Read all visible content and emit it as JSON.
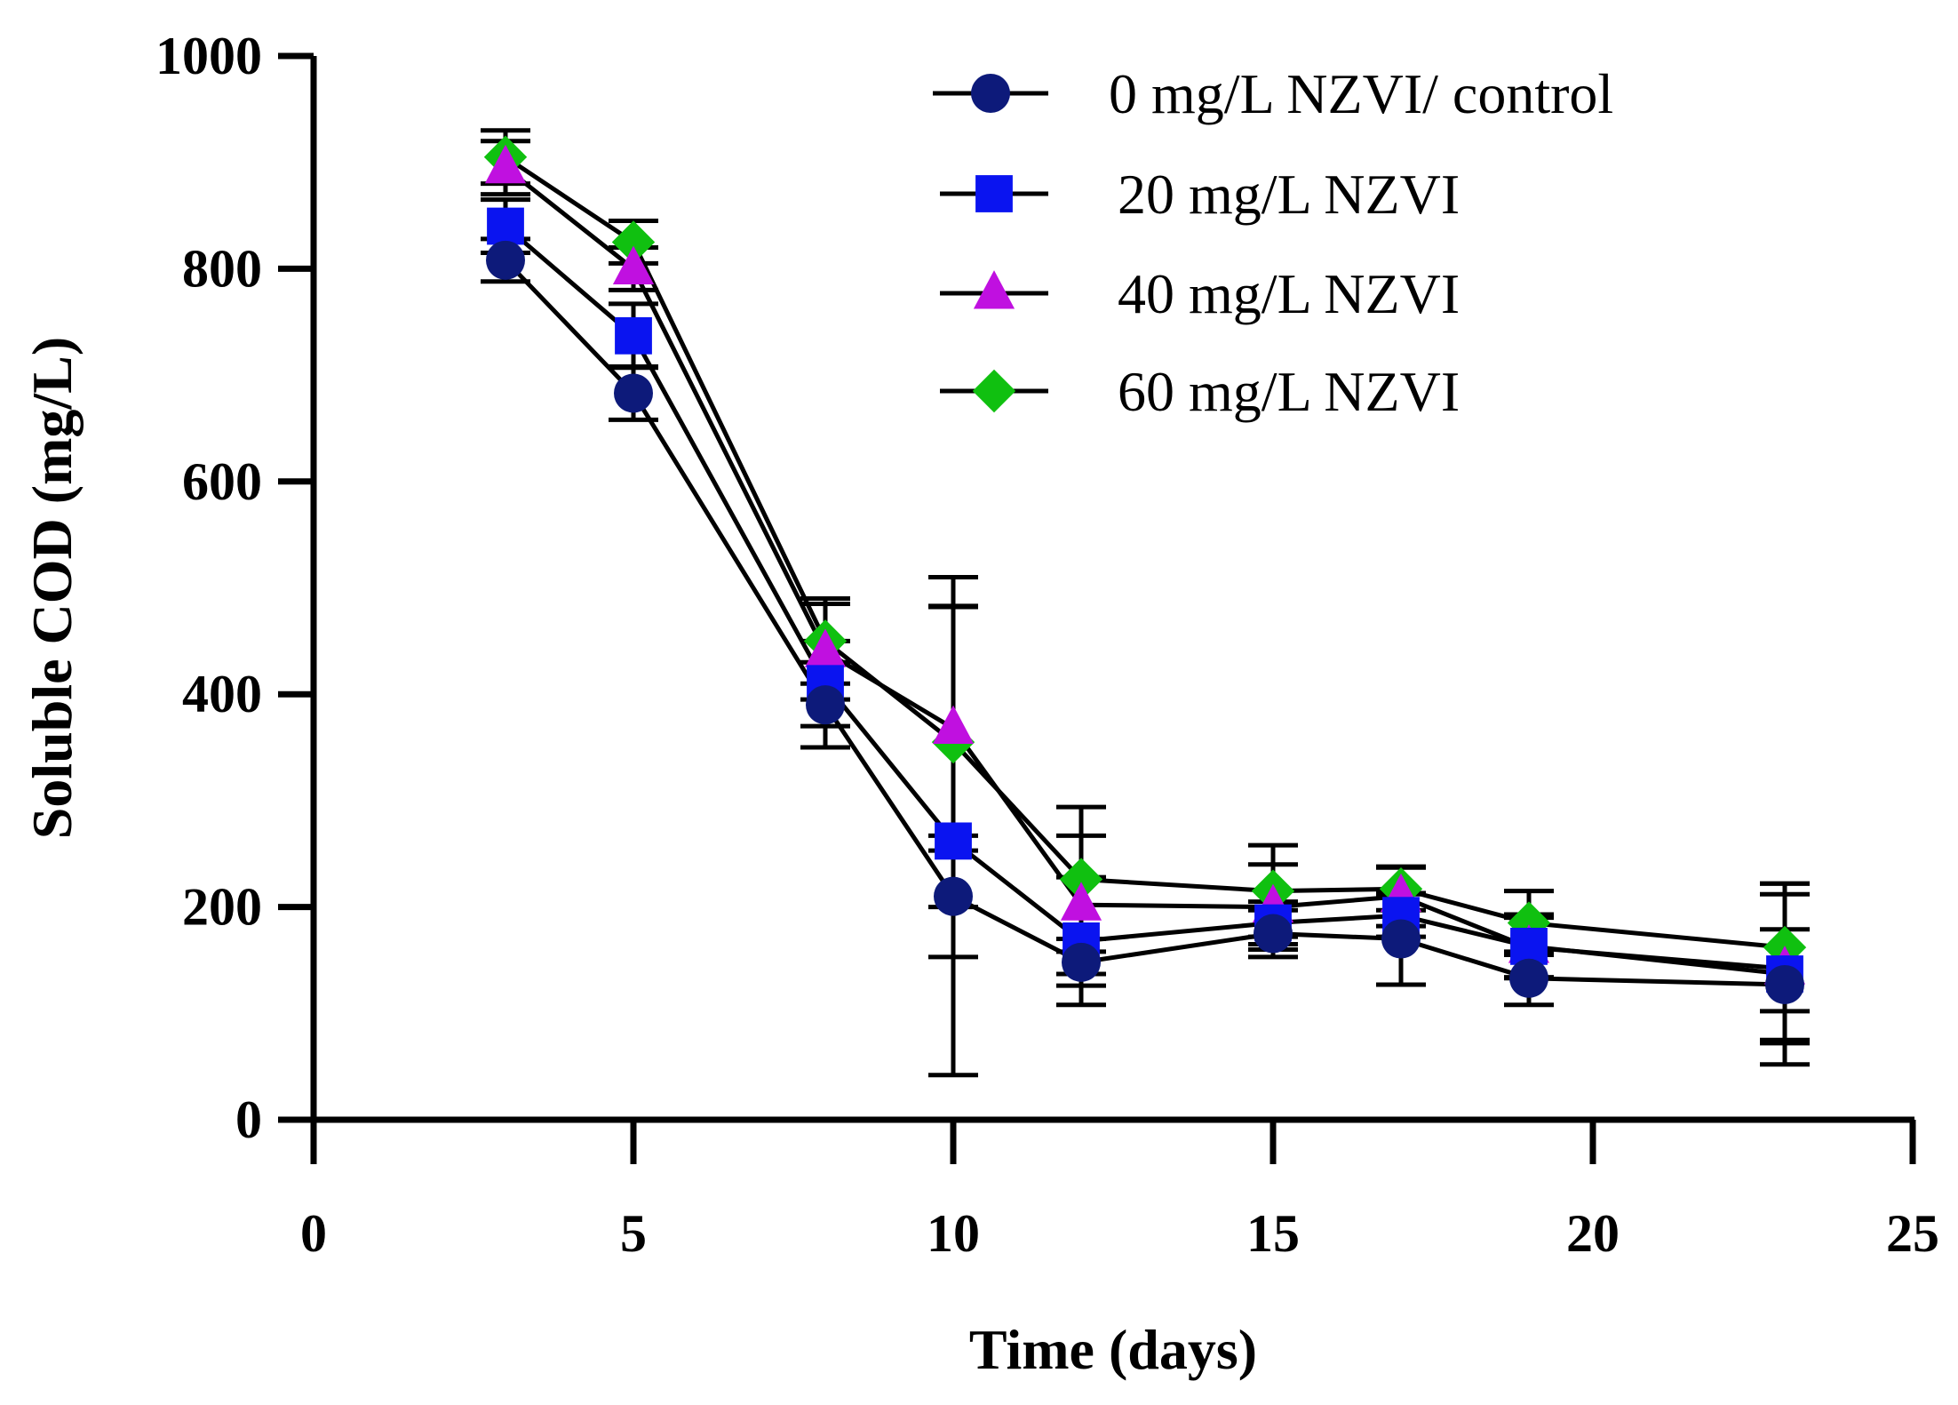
{
  "chart_data": {
    "type": "line",
    "title": "",
    "xlabel": "Time (days)",
    "ylabel": "Soluble COD  (mg/L)",
    "xlim": [
      0,
      25
    ],
    "ylim": [
      0,
      1000
    ],
    "x_ticks": [
      0,
      5,
      10,
      15,
      20,
      25
    ],
    "y_ticks": [
      0,
      200,
      400,
      600,
      800,
      1000
    ],
    "x_tick_labels": [
      "0",
      "5",
      "10",
      "15",
      "20",
      "25"
    ],
    "y_tick_labels": [
      "0",
      "200",
      "400",
      "600",
      "800",
      "1000"
    ],
    "grid": false,
    "legend_position": "top-right",
    "x": [
      3,
      5,
      8,
      10,
      12,
      15,
      17,
      19,
      23
    ],
    "series": [
      {
        "name": "0 mg/L NZVI/ control",
        "marker": "circle",
        "color": "#0d1a7a",
        "values": [
          808,
          683,
          390,
          210,
          148,
          175,
          170,
          133,
          127
        ],
        "errors": [
          20,
          25,
          40,
          57,
          22,
          22,
          43,
          25,
          52
        ]
      },
      {
        "name": "20 mg/L NZVI",
        "marker": "square",
        "color": "#0a14f0",
        "values": [
          840,
          737,
          410,
          262,
          168,
          185,
          192,
          163,
          137
        ],
        "errors": [
          25,
          30,
          40,
          220,
          60,
          20,
          20,
          30,
          85
        ]
      },
      {
        "name": "40 mg/L NZVI",
        "marker": "triangle",
        "color": "#c010e0",
        "values": [
          895,
          800,
          440,
          368,
          202,
          200,
          210,
          162,
          142
        ],
        "errors": [
          25,
          20,
          45,
          115,
          65,
          40,
          28,
          28,
          70
        ]
      },
      {
        "name": "60 mg/L NZVI",
        "marker": "diamond",
        "color": "#10c010",
        "values": [
          905,
          825,
          450,
          355,
          226,
          215,
          217,
          185,
          162
        ],
        "errors": [
          25,
          20,
          40,
          155,
          68,
          43,
          20,
          30,
          60
        ]
      }
    ]
  }
}
